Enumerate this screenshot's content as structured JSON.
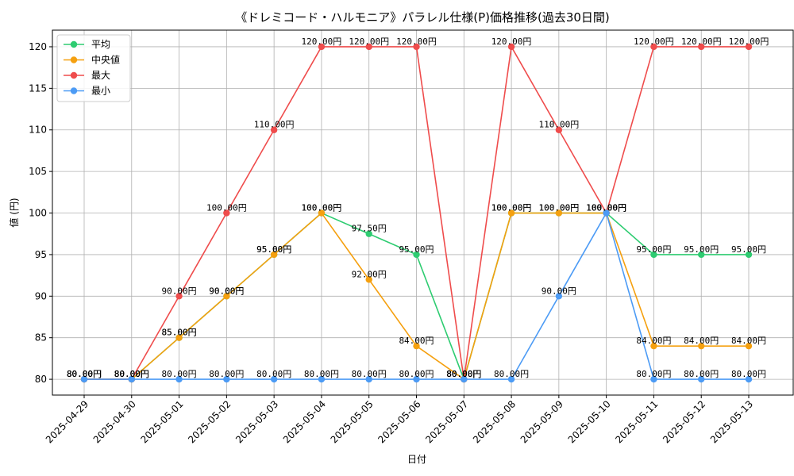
{
  "chart_data": {
    "type": "line",
    "title": "《ドレミコード・ハルモニア》パラレル仕様(P)価格推移(過去30日間)",
    "xlabel": "日付",
    "ylabel": "値 (円)",
    "categories": [
      "2025-04-29",
      "2025-04-30",
      "2025-05-01",
      "2025-05-02",
      "2025-05-03",
      "2025-05-04",
      "2025-05-05",
      "2025-05-06",
      "2025-05-07",
      "2025-05-08",
      "2025-05-09",
      "2025-05-10",
      "2025-05-11",
      "2025-05-12",
      "2025-05-13"
    ],
    "ylim": [
      78.1,
      122.0
    ],
    "yticks": [
      80,
      85,
      90,
      95,
      100,
      105,
      110,
      115,
      120
    ],
    "grid": true,
    "legend_position": "upper-left",
    "label_suffix": "円",
    "series": [
      {
        "name": "平均",
        "color": "#2ecc71",
        "values": [
          80,
          80,
          85,
          90,
          95,
          100,
          97.5,
          95,
          80,
          100,
          100,
          100,
          95,
          95,
          95
        ]
      },
      {
        "name": "中央値",
        "color": "#f5a00f",
        "values": [
          80,
          80,
          85,
          90,
          95,
          100,
          92,
          84,
          80,
          100,
          100,
          100,
          84,
          84,
          84
        ]
      },
      {
        "name": "最大",
        "color": "#ef4c4c",
        "values": [
          80,
          80,
          90,
          100,
          110,
          120,
          120,
          120,
          80,
          120,
          110,
          100,
          120,
          120,
          120
        ]
      },
      {
        "name": "最小",
        "color": "#4c9bf5",
        "values": [
          80,
          80,
          80,
          80,
          80,
          80,
          80,
          80,
          80,
          80,
          90,
          100,
          80,
          80,
          80
        ]
      }
    ]
  }
}
